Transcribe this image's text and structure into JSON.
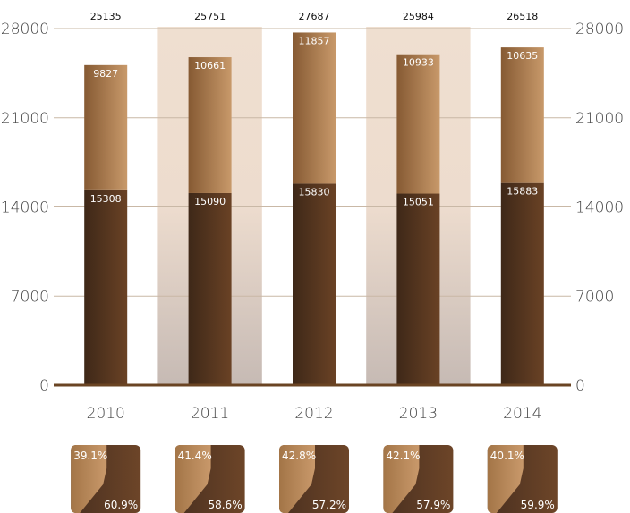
{
  "chart_data": {
    "type": "bar",
    "stacked": true,
    "categories": [
      "2010",
      "2011",
      "2012",
      "2013",
      "2014"
    ],
    "series": [
      {
        "values": [
          15308,
          15090,
          15830,
          15051,
          15883
        ]
      },
      {
        "values": [
          9827,
          10661,
          11857,
          10933,
          10635
        ]
      }
    ],
    "totals": [
      25135,
      25751,
      27687,
      25984,
      26518
    ],
    "ylim": [
      0,
      28000
    ],
    "yticks": [
      "0",
      "7000",
      "14000",
      "21000",
      "28000"
    ],
    "y_axis_sides": [
      "left",
      "right"
    ],
    "gridlines": true,
    "share_tiles": [
      {
        "upper": "39.1%",
        "lower": "60.9%"
      },
      {
        "upper": "41.4%",
        "lower": "58.6%"
      },
      {
        "upper": "42.8%",
        "lower": "57.2%"
      },
      {
        "upper": "42.1%",
        "lower": "57.9%"
      },
      {
        "upper": "40.1%",
        "lower": "59.9%"
      }
    ],
    "colors": {
      "bottom_dark": "#3e2818",
      "bottom_light": "#6a4225",
      "top_dark": "#865a33",
      "top_light": "#c8996a",
      "grid": "#c9b8a6",
      "baseline": "#6a4423",
      "band": "#efdfd0",
      "band_bottom": "#c9bdb6"
    },
    "shaded_bands": [
      "2011",
      "2013"
    ]
  }
}
